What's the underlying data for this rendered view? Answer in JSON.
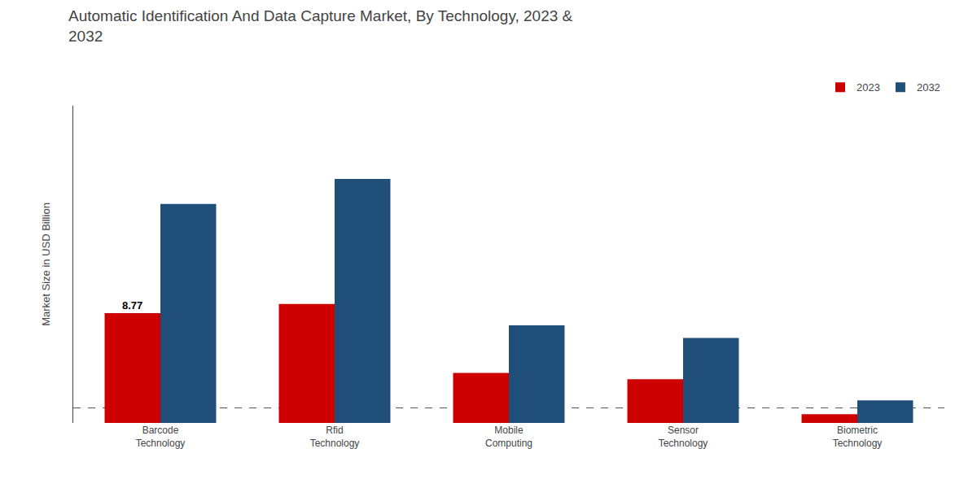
{
  "chart_data": {
    "type": "bar",
    "title": "Automatic Identification And Data Capture Market, By Technology, 2023 &\n2032",
    "ylabel": "Market Size in USD Billion",
    "categories": [
      "Barcode\nTechnology",
      "Rfid\nTechnology",
      "Mobile\nComputing",
      "Sensor\nTechnology",
      "Biometric\nTechnology"
    ],
    "series": [
      {
        "name": "2023",
        "color": "#cc0000",
        "values": [
          8.77,
          9.5,
          4.0,
          3.5,
          0.7
        ]
      },
      {
        "name": "2032",
        "color": "#1f4e79",
        "values": [
          17.5,
          19.5,
          7.8,
          6.8,
          1.8
        ]
      }
    ],
    "annotations": [
      {
        "text": "8.77",
        "category": "Barcode\nTechnology",
        "series": "2023",
        "y": 8.77
      }
    ],
    "dashed_line_y": 1.2,
    "ylim": [
      0,
      25.35
    ],
    "yticks": [],
    "tick_labels": "x",
    "grid": false,
    "legend": "upper right"
  }
}
